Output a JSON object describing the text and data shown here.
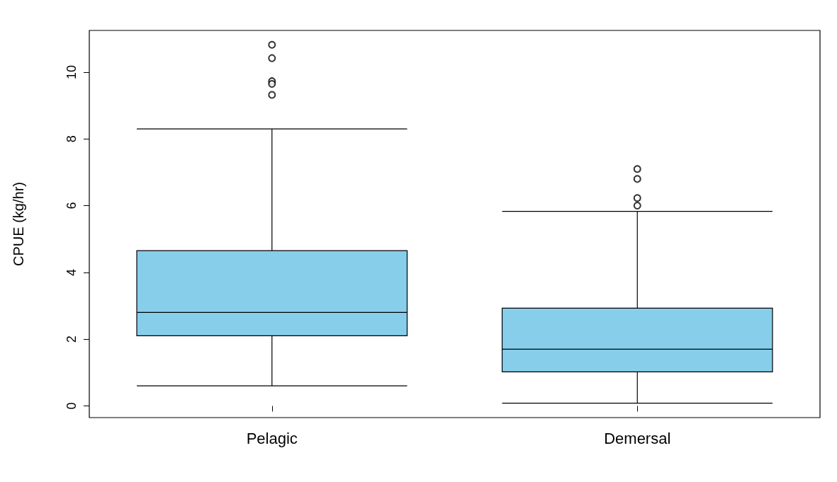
{
  "chart_data": {
    "type": "box",
    "ylabel": "CPUE (kg/hr)",
    "categories": [
      "Pelagic",
      "Demersal"
    ],
    "color": "#87ceeb",
    "boxes": [
      {
        "low": 0.6,
        "q1": 2.1,
        "median": 2.8,
        "q3": 4.65,
        "high": 8.3,
        "outliers": [
          10.82,
          10.42,
          9.73,
          9.65,
          9.32
        ]
      },
      {
        "low": 0.08,
        "q1": 1.02,
        "median": 1.7,
        "q3": 2.93,
        "high": 5.83,
        "outliers": [
          7.1,
          6.8,
          6.23,
          6.0
        ]
      }
    ],
    "ylim": [
      -0.35,
      11.25
    ],
    "yticks": [
      0,
      2,
      4,
      6,
      8,
      10
    ],
    "grid": false,
    "marker": "circle"
  }
}
